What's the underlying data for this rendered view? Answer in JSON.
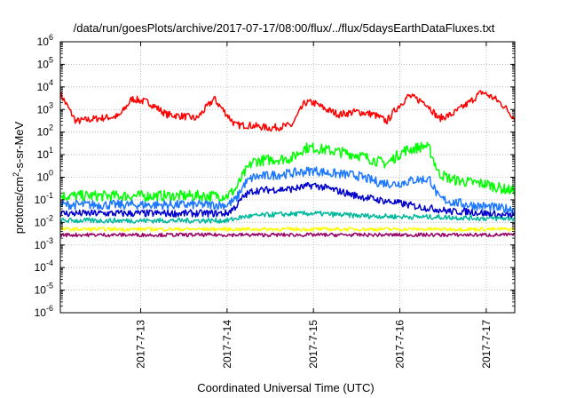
{
  "chart_data": {
    "type": "line",
    "title": "/data/run/goesPlots/archive/2017-07-17/08:00/flux/../flux/5daysEarthDataFluxes.txt",
    "xlabel": "Coordinated Universal Time (UTC)",
    "ylabel": {
      "pre": "protons/cm",
      "sup": "2",
      "post": "-s-sr-MeV"
    },
    "yscale": "log",
    "ylim": [
      1e-06,
      1000000.0
    ],
    "x_unit": "days since 2017-07-12 00:00 UTC",
    "xlim": [
      0.07,
      5.33
    ],
    "grid": true,
    "legend": "none",
    "xticks": [
      {
        "x": 1,
        "label": "2017-7-13"
      },
      {
        "x": 2,
        "label": "2017-7-14"
      },
      {
        "x": 3,
        "label": "2017-7-15"
      },
      {
        "x": 4,
        "label": "2017-7-16"
      },
      {
        "x": 5,
        "label": "2017-7-17"
      }
    ],
    "yticks": [
      {
        "e": 6,
        "base": "10",
        "exp": "6"
      },
      {
        "e": 5,
        "base": "10",
        "exp": "5"
      },
      {
        "e": 4,
        "base": "10",
        "exp": "4"
      },
      {
        "e": 3,
        "base": "10",
        "exp": "3"
      },
      {
        "e": 2,
        "base": "10",
        "exp": "2"
      },
      {
        "e": 1,
        "base": "10",
        "exp": "1"
      },
      {
        "e": 0,
        "base": "10",
        "exp": "0"
      },
      {
        "e": -1,
        "base": "10",
        "exp": "-1"
      },
      {
        "e": -2,
        "base": "10",
        "exp": "-2"
      },
      {
        "e": -3,
        "base": "10",
        "exp": "-3"
      },
      {
        "e": -4,
        "base": "10",
        "exp": "-4"
      },
      {
        "e": -5,
        "base": "10",
        "exp": "-5"
      },
      {
        "e": -6,
        "base": "10",
        "exp": "-6"
      }
    ],
    "series": [
      {
        "color": "#ff0000",
        "noise": 0.1,
        "x": [
          0.07,
          0.25,
          0.5,
          0.75,
          0.9,
          1.1,
          1.3,
          1.5,
          1.65,
          1.85,
          1.95,
          2.1,
          2.25,
          2.5,
          2.75,
          2.9,
          3.0,
          3.15,
          3.3,
          3.5,
          3.7,
          3.85,
          3.95,
          4.1,
          4.3,
          4.45,
          4.6,
          4.8,
          4.95,
          5.1,
          5.2,
          5.33
        ],
        "y": [
          5000,
          300,
          400,
          500,
          3000,
          2000,
          600,
          500,
          400,
          3000,
          1000,
          200,
          200,
          150,
          200,
          2000,
          2000,
          1000,
          600,
          800,
          600,
          300,
          1000,
          4000,
          2000,
          400,
          600,
          2000,
          6000,
          3000,
          1500,
          400
        ]
      },
      {
        "color": "#00ff00",
        "noise": 0.15,
        "x": [
          0.07,
          0.5,
          1.0,
          1.5,
          2.0,
          2.1,
          2.2,
          2.3,
          2.5,
          2.75,
          2.9,
          3.0,
          3.2,
          3.5,
          3.75,
          3.85,
          3.95,
          4.05,
          4.2,
          4.3,
          4.35,
          4.45,
          4.6,
          4.8,
          5.0,
          5.2,
          5.33
        ],
        "y": [
          0.15,
          0.15,
          0.15,
          0.15,
          0.15,
          0.3,
          1.5,
          5,
          6,
          7,
          20,
          20,
          15,
          10,
          5,
          4,
          8,
          15,
          20,
          25,
          15,
          1.5,
          0.8,
          0.6,
          0.5,
          0.3,
          0.25
        ]
      },
      {
        "color": "#1e78ff",
        "noise": 0.13,
        "x": [
          0.07,
          0.5,
          1.0,
          1.5,
          2.0,
          2.1,
          2.2,
          2.3,
          2.5,
          2.75,
          3.0,
          3.2,
          3.5,
          3.75,
          3.95,
          4.05,
          4.2,
          4.35,
          4.45,
          4.6,
          4.8,
          5.0,
          5.2,
          5.33
        ],
        "y": [
          0.06,
          0.06,
          0.06,
          0.06,
          0.06,
          0.1,
          0.5,
          1.0,
          1.2,
          1.5,
          2.0,
          1.5,
          1.2,
          0.6,
          0.5,
          0.6,
          0.8,
          0.8,
          0.12,
          0.08,
          0.06,
          0.05,
          0.04,
          0.04
        ]
      },
      {
        "color": "#0000cc",
        "noise": 0.1,
        "x": [
          0.07,
          0.5,
          1.0,
          1.5,
          2.0,
          2.1,
          2.2,
          2.3,
          2.5,
          2.75,
          3.0,
          3.2,
          3.5,
          3.75,
          4.0,
          4.2,
          4.4,
          4.6,
          4.8,
          5.0,
          5.2,
          5.33
        ],
        "y": [
          0.025,
          0.025,
          0.025,
          0.025,
          0.025,
          0.05,
          0.15,
          0.25,
          0.28,
          0.3,
          0.45,
          0.3,
          0.15,
          0.1,
          0.07,
          0.05,
          0.04,
          0.03,
          0.03,
          0.025,
          0.02,
          0.02
        ]
      },
      {
        "color": "#00b89c",
        "noise": 0.07,
        "x": [
          0.07,
          1.0,
          2.0,
          2.2,
          2.5,
          3.0,
          3.5,
          4.0,
          4.5,
          5.0,
          5.33
        ],
        "y": [
          0.012,
          0.012,
          0.012,
          0.018,
          0.022,
          0.025,
          0.02,
          0.018,
          0.017,
          0.015,
          0.015
        ]
      },
      {
        "color": "#ffff00",
        "noise": 0.05,
        "x": [
          0.07,
          1.0,
          2.0,
          3.0,
          4.0,
          5.0,
          5.33
        ],
        "y": [
          0.005,
          0.005,
          0.005,
          0.005,
          0.005,
          0.005,
          0.005
        ]
      },
      {
        "color": "#990066",
        "noise": 0.05,
        "x": [
          0.07,
          1.0,
          2.0,
          3.0,
          4.0,
          5.0,
          5.33
        ],
        "y": [
          0.0028,
          0.0028,
          0.0028,
          0.0028,
          0.0028,
          0.0028,
          0.0028
        ]
      }
    ]
  }
}
